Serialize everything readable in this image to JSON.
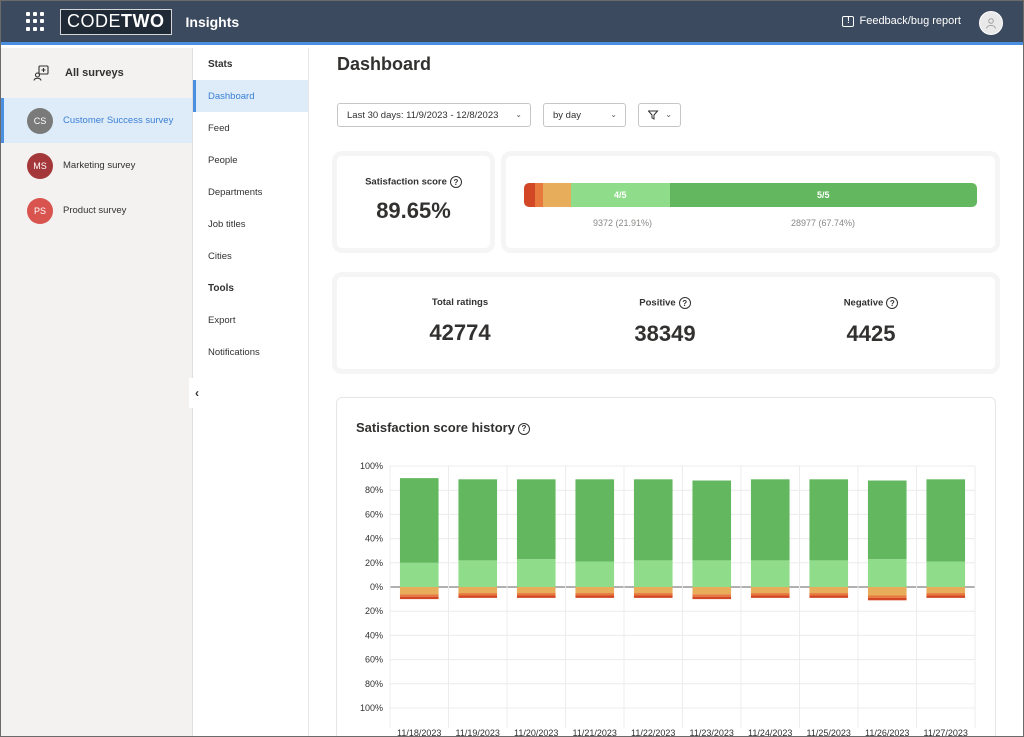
{
  "header": {
    "logo_code": "CODE",
    "logo_two": "TWO",
    "app_title": "Insights",
    "feedback_label": "Feedback/bug report",
    "feedback_icon": "!"
  },
  "surveys": {
    "heading": "All surveys",
    "items": [
      {
        "initials": "CS",
        "name": "Customer Success survey",
        "color": "#7a7a7a"
      },
      {
        "initials": "MS",
        "name": "Marketing survey",
        "color": "#a4373a"
      },
      {
        "initials": "PS",
        "name": "Product survey",
        "color": "#d9534f"
      }
    ]
  },
  "nav": {
    "stats_heading": "Stats",
    "stats_items": [
      "Dashboard",
      "Feed",
      "People",
      "Departments",
      "Job titles",
      "Cities"
    ],
    "tools_heading": "Tools",
    "tools_items": [
      "Export",
      "Notifications"
    ],
    "collapse_glyph": "‹"
  },
  "main": {
    "title": "Dashboard",
    "date_range": "Last 30 days: 11/9/2023 - 12/8/2023",
    "grouping": "by day",
    "chevron": "⌄",
    "help_glyph": "?"
  },
  "score": {
    "label": "Satisfaction score",
    "value": "89.65%"
  },
  "distribution": {
    "segments": [
      {
        "label": "",
        "percent": 2.4,
        "color": "#d24726"
      },
      {
        "label": "",
        "percent": 1.9,
        "color": "#e8793c"
      },
      {
        "label": "",
        "percent": 6.0,
        "color": "#e8ad5a"
      },
      {
        "label": "4/5",
        "percent": 21.91,
        "color": "#8fdc8a"
      },
      {
        "label": "5/5",
        "percent": 67.74,
        "color": "#63b85f"
      }
    ],
    "caption_4": "9372 (21.91%)",
    "caption_5": "28977 (67.74%)"
  },
  "totals": {
    "total_label": "Total ratings",
    "total_value": "42774",
    "positive_label": "Positive",
    "positive_value": "38349",
    "negative_label": "Negative",
    "negative_value": "4425"
  },
  "chart_data": {
    "type": "bar",
    "title": "Satisfaction score history",
    "categories": [
      "11/18/2023",
      "11/19/2023",
      "11/20/2023",
      "11/21/2023",
      "11/22/2023",
      "11/23/2023",
      "11/24/2023",
      "11/25/2023",
      "11/26/2023",
      "11/27/2023"
    ],
    "y_ticks": [
      "100%",
      "80%",
      "60%",
      "40%",
      "20%",
      "0%",
      "20%",
      "40%",
      "60%",
      "80%",
      "100%"
    ],
    "ylim": [
      -100,
      100
    ],
    "grid": true,
    "stacked": true,
    "series": [
      {
        "values": [
          20,
          22,
          23,
          21,
          22,
          22,
          22,
          22,
          23,
          21
        ],
        "color": "#8fdc8a"
      },
      {
        "values": [
          70,
          67,
          66,
          68,
          67,
          66,
          67,
          67,
          65,
          68
        ],
        "color": "#63b85f"
      },
      {
        "values": [
          -6,
          -5,
          -5,
          -5,
          -5,
          -6,
          -5,
          -5,
          -7,
          -5
        ],
        "color": "#e8ad5a"
      },
      {
        "values": [
          -2,
          -2,
          -2,
          -2,
          -2,
          -2,
          -2,
          -2,
          -2,
          -2
        ],
        "color": "#e8793c"
      },
      {
        "values": [
          -2,
          -2,
          -2,
          -2,
          -2,
          -2,
          -2,
          -2,
          -2,
          -2
        ],
        "color": "#d24726"
      }
    ]
  }
}
